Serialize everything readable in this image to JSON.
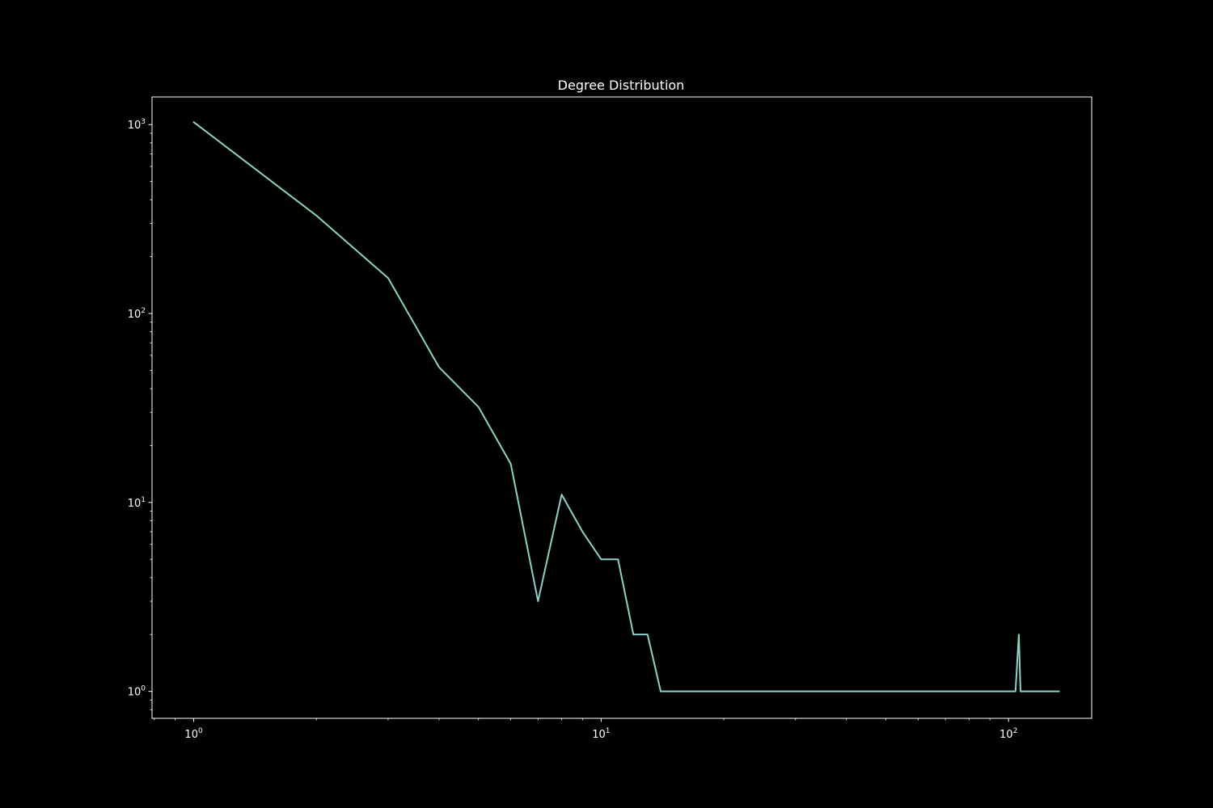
{
  "chart_data": {
    "type": "line",
    "title": "Degree Distribution",
    "xlabel": "",
    "ylabel": "",
    "xscale": "log",
    "yscale": "log",
    "xlim": [
      0.79,
      160
    ],
    "ylim": [
      0.72,
      1400
    ],
    "grid": false,
    "legend": "none",
    "background_color": "#000000",
    "axes_color": "#ffffff",
    "x_ticks": [
      {
        "base": "10",
        "exp": "0",
        "value": 1
      },
      {
        "base": "10",
        "exp": "1",
        "value": 10
      },
      {
        "base": "10",
        "exp": "2",
        "value": 100
      }
    ],
    "y_ticks": [
      {
        "base": "10",
        "exp": "0",
        "value": 1
      },
      {
        "base": "10",
        "exp": "1",
        "value": 10
      },
      {
        "base": "10",
        "exp": "2",
        "value": 100
      },
      {
        "base": "10",
        "exp": "3",
        "value": 1000
      }
    ],
    "series": [
      {
        "color": "#8dd3c7",
        "points": [
          [
            1,
            1030
          ],
          [
            2,
            330
          ],
          [
            3,
            154
          ],
          [
            4,
            52
          ],
          [
            5,
            32
          ],
          [
            6,
            16
          ],
          [
            7,
            3
          ],
          [
            8,
            11
          ],
          [
            9,
            7
          ],
          [
            10,
            5
          ],
          [
            11,
            5
          ],
          [
            12,
            2
          ],
          [
            13,
            2
          ],
          [
            14,
            1
          ],
          [
            104,
            1
          ],
          [
            106,
            2
          ],
          [
            107,
            1
          ],
          [
            133,
            1
          ]
        ]
      }
    ]
  }
}
